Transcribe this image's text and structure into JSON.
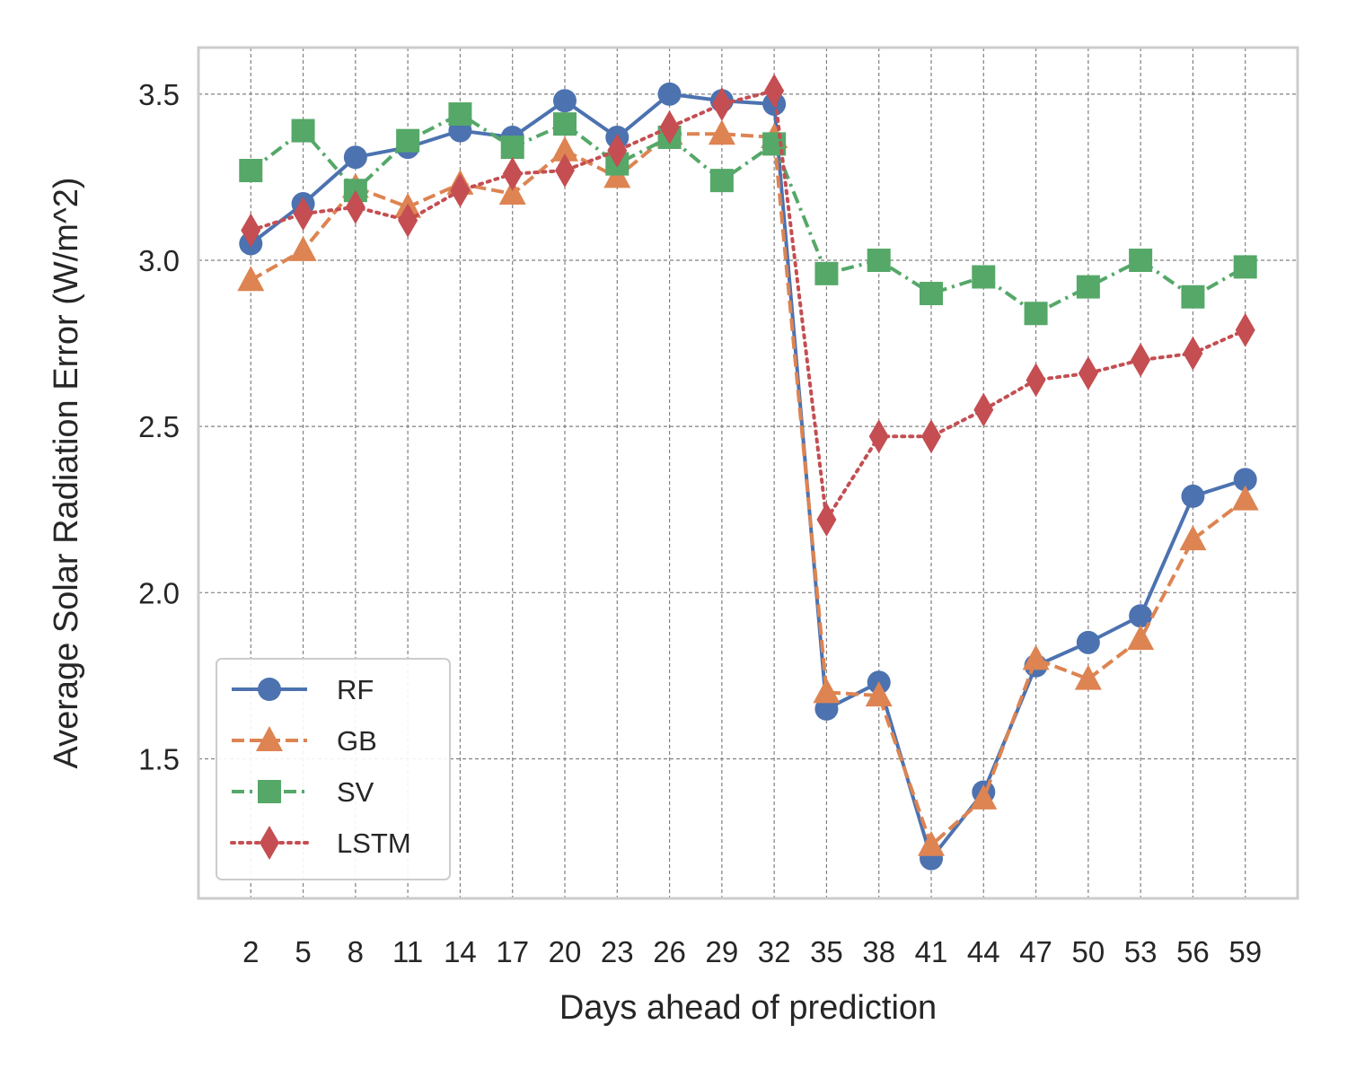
{
  "chart_data": {
    "type": "line",
    "title": "",
    "xlabel": "Days ahead of prediction",
    "ylabel": "Average Solar Radiation Error (W/m^2)",
    "x": [
      2,
      5,
      8,
      11,
      14,
      17,
      20,
      23,
      26,
      29,
      32,
      35,
      38,
      41,
      44,
      47,
      50,
      53,
      56,
      59
    ],
    "x_tick_labels": [
      "2",
      "5",
      "8",
      "11",
      "14",
      "17",
      "20",
      "23",
      "26",
      "29",
      "32",
      "35",
      "38",
      "41",
      "44",
      "47",
      "50",
      "53",
      "56",
      "59"
    ],
    "y_ticks": [
      1.5,
      2.0,
      2.5,
      3.0,
      3.5
    ],
    "y_tick_labels": [
      "1.5",
      "2.0",
      "2.5",
      "3.0",
      "3.5"
    ],
    "xlim": [
      -1,
      62
    ],
    "ylim": [
      1.08,
      3.64
    ],
    "grid": true,
    "legend_position": "lower-left",
    "series": [
      {
        "name": "RF",
        "color": "#4c72b0",
        "marker": "circle",
        "line_style": "solid",
        "values": [
          3.05,
          3.17,
          3.31,
          3.34,
          3.39,
          3.37,
          3.48,
          3.37,
          3.5,
          3.48,
          3.47,
          1.65,
          1.73,
          1.2,
          1.4,
          1.78,
          1.85,
          1.93,
          2.29,
          2.34
        ]
      },
      {
        "name": "GB",
        "color": "#dd8452",
        "marker": "triangle",
        "line_style": "dashed",
        "values": [
          2.94,
          3.03,
          3.22,
          3.16,
          3.23,
          3.2,
          3.33,
          3.25,
          3.38,
          3.38,
          3.37,
          1.7,
          1.69,
          1.24,
          1.38,
          1.8,
          1.74,
          1.86,
          2.16,
          2.28
        ]
      },
      {
        "name": "SV",
        "color": "#55a868",
        "marker": "square",
        "line_style": "dashdot",
        "values": [
          3.27,
          3.39,
          3.21,
          3.36,
          3.44,
          3.34,
          3.41,
          3.29,
          3.37,
          3.24,
          3.35,
          2.96,
          3.0,
          2.9,
          2.95,
          2.84,
          2.92,
          3.0,
          2.89,
          2.98
        ]
      },
      {
        "name": "LSTM",
        "color": "#c44e52",
        "marker": "diamond",
        "line_style": "dotted",
        "values": [
          3.09,
          3.14,
          3.16,
          3.12,
          3.21,
          3.26,
          3.27,
          3.33,
          3.4,
          3.47,
          3.51,
          2.22,
          2.47,
          2.47,
          2.55,
          2.64,
          2.66,
          2.7,
          2.72,
          2.79
        ]
      }
    ]
  }
}
